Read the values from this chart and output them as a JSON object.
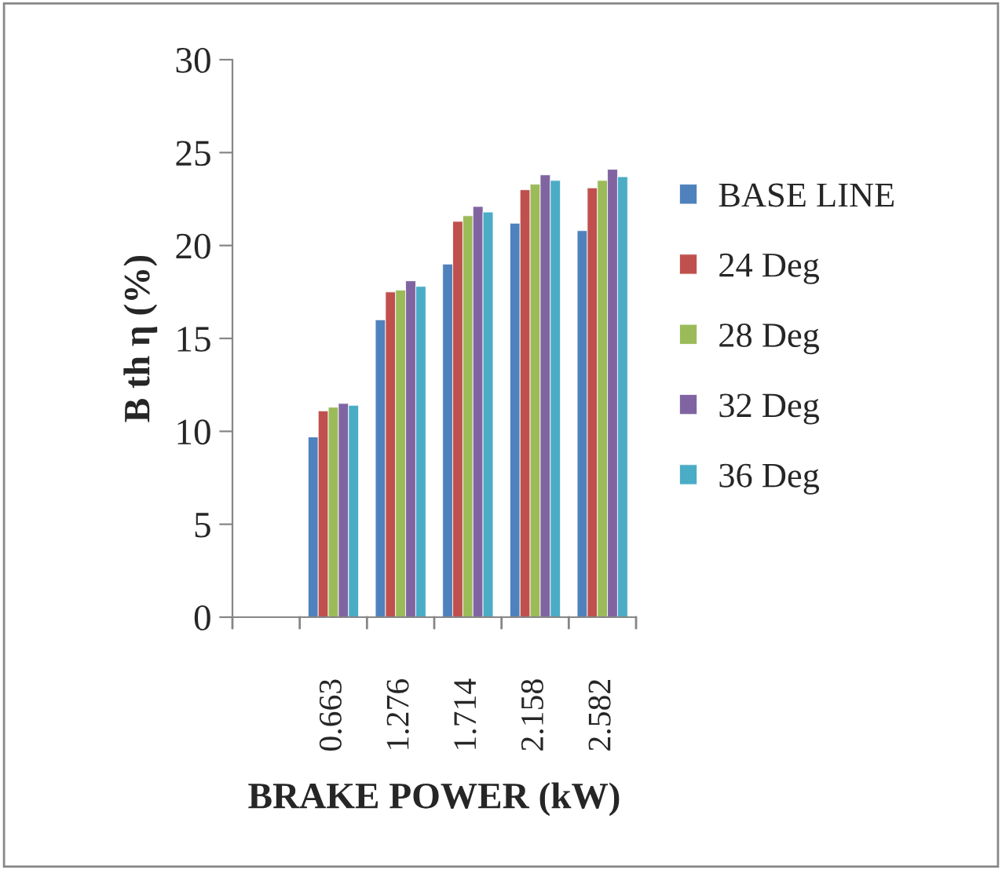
{
  "chart_data": {
    "type": "bar",
    "xlabel": "BRAKE POWER (kW)",
    "ylabel": "B th η (%)",
    "categories": [
      null,
      "0.663",
      "1.276",
      "1.714",
      "2.158",
      "2.582"
    ],
    "series": [
      {
        "name": "BASE LINE",
        "color": "#4f81bd",
        "values": [
          null,
          9.7,
          16.0,
          19.0,
          21.2,
          20.8
        ]
      },
      {
        "name": "24 Deg",
        "color": "#c0504d",
        "values": [
          null,
          11.1,
          17.5,
          21.3,
          23.0,
          23.1
        ]
      },
      {
        "name": "28 Deg",
        "color": "#9bbb59",
        "values": [
          null,
          11.3,
          17.6,
          21.6,
          23.3,
          23.5
        ]
      },
      {
        "name": "32 Deg",
        "color": "#8064a2",
        "values": [
          null,
          11.5,
          18.1,
          22.1,
          23.8,
          24.1
        ]
      },
      {
        "name": "36 Deg",
        "color": "#4bacc6",
        "values": [
          null,
          11.4,
          17.8,
          21.8,
          23.5,
          23.7
        ]
      }
    ],
    "ylim": [
      0,
      30
    ],
    "yticks": [
      0,
      5,
      10,
      15,
      20,
      25,
      30
    ],
    "grid": false,
    "legend": "right"
  }
}
